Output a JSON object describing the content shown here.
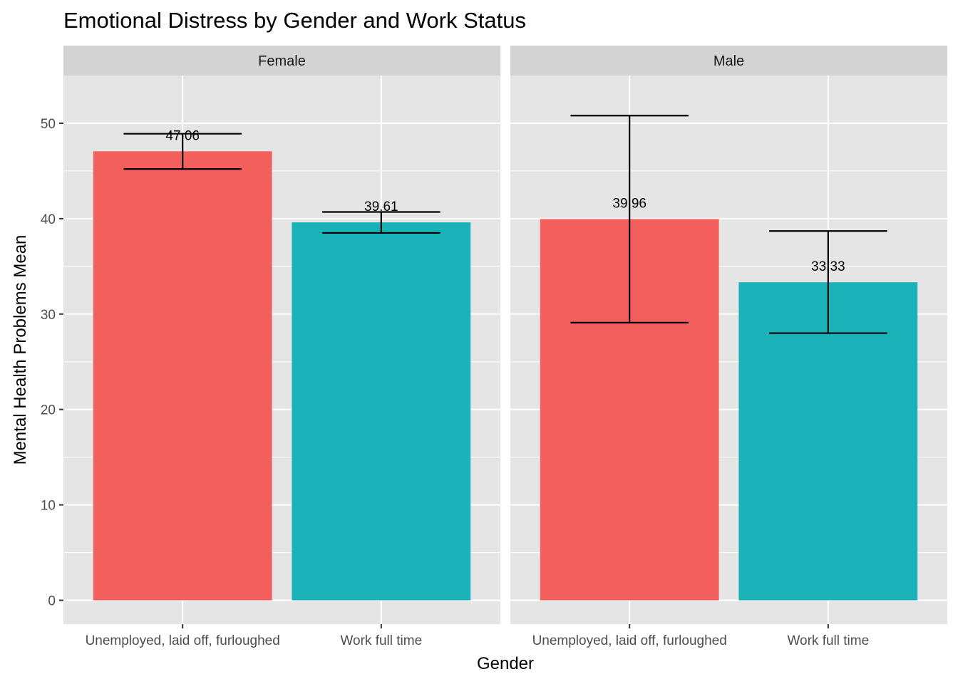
{
  "chart_data": {
    "type": "bar",
    "title": "Emotional Distress by Gender and Work Status",
    "xlabel": "Gender",
    "ylabel": "Mental Health Problems Mean",
    "ylim": [
      -2.5,
      55
    ],
    "yticks": [
      0,
      10,
      20,
      30,
      40,
      50
    ],
    "categories": [
      "Unemployed, laid off, furloughed",
      "Work full time"
    ],
    "colors": {
      "Unemployed, laid off, furloughed": "#F25F5C",
      "Work full time": "#1AB2B9"
    },
    "panel_background": "#E5E5E5",
    "strip_background": "#D3D3D3",
    "grid": true,
    "legend": "none",
    "panels": [
      {
        "name": "Female",
        "bars": [
          {
            "category": "Unemployed, laid off, furloughed",
            "value": 47.06,
            "label": "47.06",
            "err_low": 45.2,
            "err_high": 48.9
          },
          {
            "category": "Work full time",
            "value": 39.61,
            "label": "39.61",
            "err_low": 38.5,
            "err_high": 40.7
          }
        ]
      },
      {
        "name": "Male",
        "bars": [
          {
            "category": "Unemployed, laid off, furloughed",
            "value": 39.96,
            "label": "39.96",
            "err_low": 29.1,
            "err_high": 50.8
          },
          {
            "category": "Work full time",
            "value": 33.33,
            "label": "33.33",
            "err_low": 28.0,
            "err_high": 38.7
          }
        ]
      }
    ]
  }
}
